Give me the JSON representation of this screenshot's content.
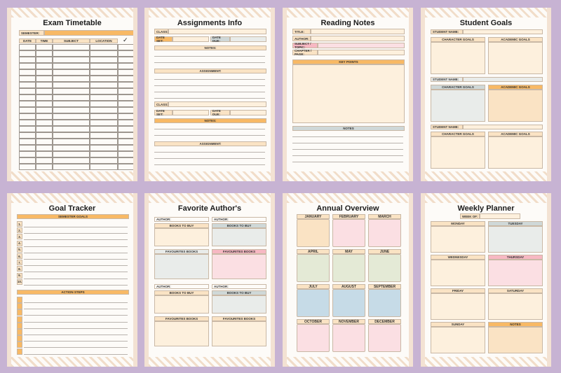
{
  "pages": {
    "exam": {
      "title": "Exam Timetable",
      "semester": "SEMESTER:",
      "cols": [
        "DATE",
        "TIME",
        "SUBJECT",
        "LOCATION"
      ],
      "check": "✓"
    },
    "assign": {
      "title": "Assignments Info",
      "class": "CLASS:",
      "date_set": "DATE SET:",
      "date_due": "DATE DUE:",
      "notes": "NOTES:",
      "assignment": "ASSIGNMENT:"
    },
    "reading": {
      "title": "Reading Notes",
      "fields": [
        "TITLE:",
        "AUTHOR:",
        "SUBJECT / TOPIC:",
        "CHAPTER / PAGE:"
      ],
      "key_points": "KEY POINTS",
      "notes": "NOTES"
    },
    "goals": {
      "title": "Student Goals",
      "student_name": "STUDENT NAME:",
      "character": "CHARACTER GOALS",
      "academic": "ACADEMIC GOALS"
    },
    "tracker": {
      "title": "Goal Tracker",
      "semester_goals": "SEMESTER GOALS",
      "numbers": [
        "1.",
        "2.",
        "3.",
        "4.",
        "5.",
        "6.",
        "7.",
        "8.",
        "9.",
        "10."
      ],
      "action_steps": "ACTION STEPS"
    },
    "author": {
      "title": "Favorite Author's",
      "author": "AUTHOR:",
      "to_buy": "BOOKS TO BUY",
      "favourites": "FAVOURITES BOOKS"
    },
    "annual": {
      "title": "Annual Overview",
      "months": [
        "January",
        "February",
        "March",
        "April",
        "May",
        "june",
        "july",
        "August",
        "September",
        "October",
        "November",
        "December"
      ]
    },
    "weekly": {
      "title": "Weekly Planner",
      "week_of": "WEEK OF:",
      "days": [
        "MONDAY",
        "TUESDAY",
        "WEDNESDAY",
        "THURSDAY",
        "FRIDAY",
        "SATURDAY",
        "SUNDAY",
        "NOTES"
      ]
    }
  }
}
